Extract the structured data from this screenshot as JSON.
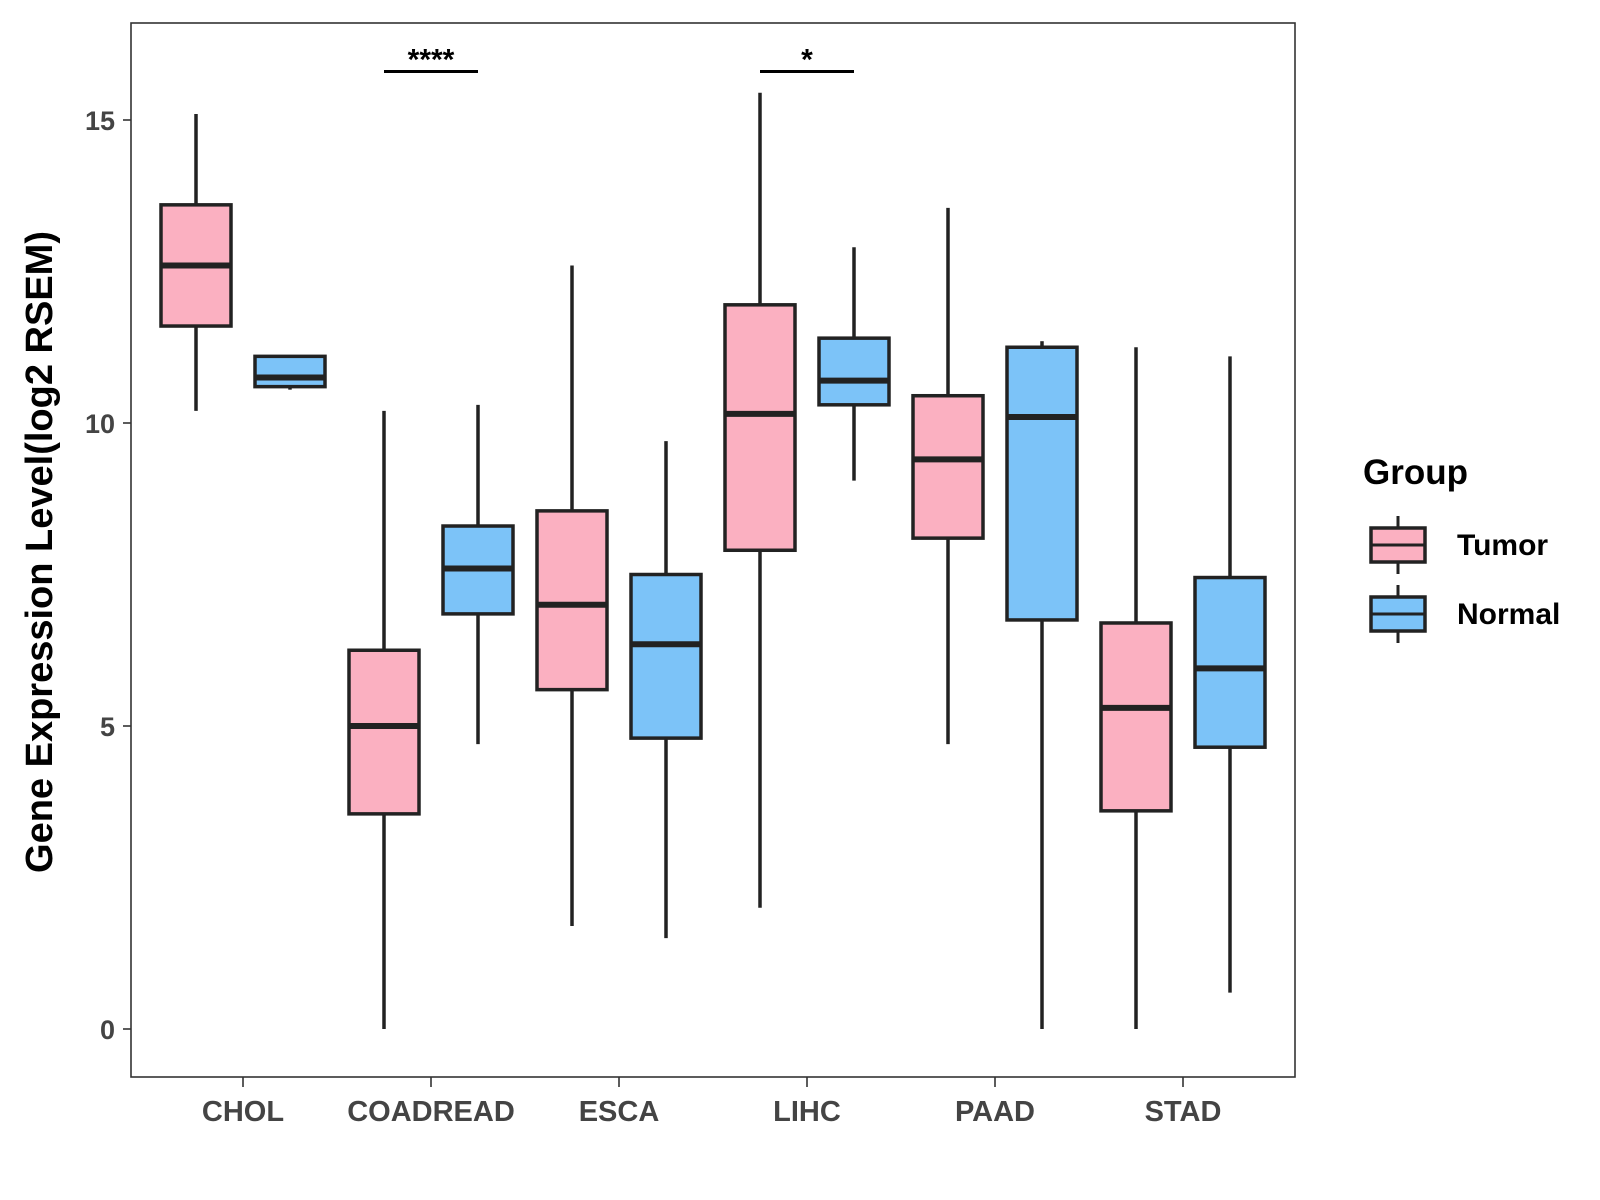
{
  "chart_data": {
    "type": "boxplot",
    "title": "",
    "xlabel": "",
    "ylabel": "Gene Expression Level(log2 RSEM)",
    "ylim": [
      -0.75,
      16.65
    ],
    "yticks": [
      0,
      5,
      10,
      15
    ],
    "ytick_labels": [
      "0",
      "5",
      "10",
      "15"
    ],
    "categories": [
      "CHOL",
      "COADREAD",
      "ESCA",
      "LIHC",
      "PAAD",
      "STAD"
    ],
    "legend": {
      "title": "Group",
      "position": "right",
      "entries": [
        "Tumor",
        "Normal"
      ]
    },
    "series": [
      {
        "name": "Tumor",
        "color": "#FBB0C1",
        "boxes": [
          {
            "category": "CHOL",
            "min": 10.2,
            "q1": 11.6,
            "median": 12.6,
            "q3": 13.6,
            "max": 15.1
          },
          {
            "category": "COADREAD",
            "min": 0.0,
            "q1": 3.55,
            "median": 5.0,
            "q3": 6.25,
            "max": 10.2
          },
          {
            "category": "ESCA",
            "min": 1.7,
            "q1": 5.6,
            "median": 7.0,
            "q3": 8.55,
            "max": 12.6
          },
          {
            "category": "LIHC",
            "min": 2.0,
            "q1": 7.9,
            "median": 10.15,
            "q3": 11.95,
            "max": 15.45
          },
          {
            "category": "PAAD",
            "min": 4.7,
            "q1": 8.1,
            "median": 9.4,
            "q3": 10.45,
            "max": 13.55
          },
          {
            "category": "STAD",
            "min": 0.0,
            "q1": 3.6,
            "median": 5.3,
            "q3": 6.7,
            "max": 11.25
          }
        ]
      },
      {
        "name": "Normal",
        "color": "#7CC3F8",
        "boxes": [
          {
            "category": "CHOL",
            "min": 10.55,
            "q1": 10.6,
            "median": 10.75,
            "q3": 11.1,
            "max": 11.1
          },
          {
            "category": "COADREAD",
            "min": 4.7,
            "q1": 6.85,
            "median": 7.6,
            "q3": 8.3,
            "max": 10.3
          },
          {
            "category": "ESCA",
            "min": 1.5,
            "q1": 4.8,
            "median": 6.35,
            "q3": 7.5,
            "max": 9.7
          },
          {
            "category": "LIHC",
            "min": 9.05,
            "q1": 10.3,
            "median": 10.7,
            "q3": 11.4,
            "max": 12.9
          },
          {
            "category": "PAAD",
            "min": 0.0,
            "q1": 6.75,
            "median": 10.1,
            "q3": 11.25,
            "max": 11.35
          },
          {
            "category": "STAD",
            "min": 0.6,
            "q1": 4.65,
            "median": 5.95,
            "q3": 7.45,
            "max": 11.1
          }
        ]
      }
    ],
    "annotations": [
      {
        "category": "COADREAD",
        "text": "****",
        "y": 15.8
      },
      {
        "category": "LIHC",
        "text": "*",
        "y": 15.8
      }
    ]
  }
}
